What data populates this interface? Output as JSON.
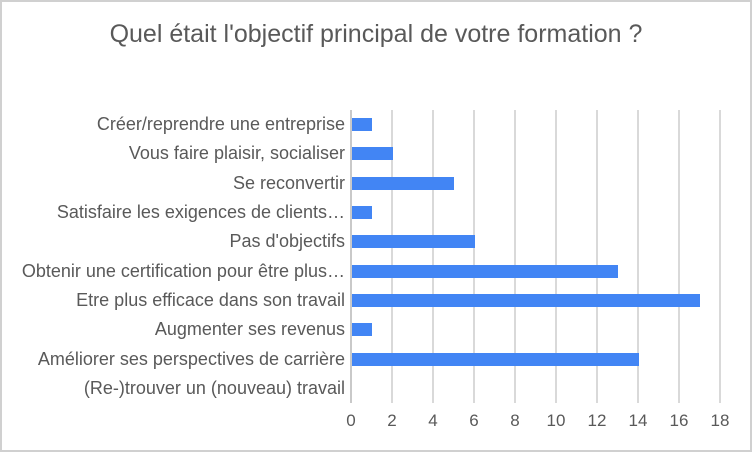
{
  "chart_data": {
    "type": "bar",
    "orientation": "horizontal",
    "title": "Quel était l'objectif principal de votre formation ?",
    "categories": [
      "Créer/reprendre une entreprise",
      "Vous faire plaisir, socialiser",
      "Se reconvertir",
      "Satisfaire les exigences de clients…",
      "Pas d'objectifs",
      "Obtenir une certification pour être plus…",
      "Etre plus efficace dans son travail",
      "Augmenter ses revenus",
      "Améliorer ses perspectives de carrière",
      "(Re-)trouver un (nouveau) travail"
    ],
    "values": [
      1,
      2,
      5,
      1,
      6,
      13,
      17,
      1,
      14,
      0
    ],
    "xlabel": "",
    "ylabel": "",
    "xlim": [
      0,
      18
    ],
    "xticks": [
      0,
      2,
      4,
      6,
      8,
      10,
      12,
      14,
      16,
      18
    ],
    "grid": true,
    "legend": "none",
    "colors": {
      "bar": "#4285F4",
      "gridline": "#D9D9D9",
      "axis_line": "#C9C9C9",
      "text": "#595959",
      "background": "#FFFFFF",
      "frame_border": "#D0D0D0"
    }
  }
}
